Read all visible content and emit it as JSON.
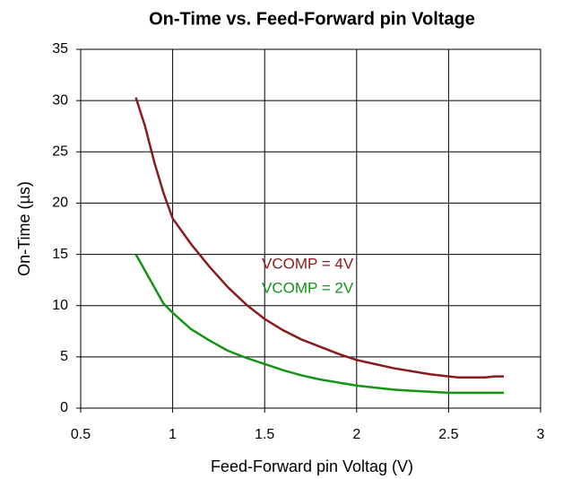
{
  "chart_data": {
    "type": "line",
    "title": "On-Time vs. Feed-Forward pin Voltage",
    "x_label": "Feed-Forward pin Voltag (V)",
    "y_label": "On-Time (µs)",
    "x": [
      0.8,
      0.85,
      0.9,
      0.95,
      1.0,
      1.1,
      1.2,
      1.3,
      1.4,
      1.5,
      1.6,
      1.7,
      1.8,
      1.9,
      2.0,
      2.1,
      2.2,
      2.3,
      2.4,
      2.5,
      2.55,
      2.6,
      2.7,
      2.75,
      2.8
    ],
    "series": [
      {
        "name": "VCOMP = 4V",
        "color": "#8b1a1a",
        "values": [
          30.3,
          27.5,
          24.0,
          21.0,
          18.5,
          16.0,
          13.8,
          11.8,
          10.1,
          8.7,
          7.6,
          6.7,
          6.0,
          5.3,
          4.7,
          4.3,
          3.9,
          3.6,
          3.3,
          3.1,
          3.0,
          3.0,
          3.0,
          3.1,
          3.1
        ]
      },
      {
        "name": "VCOMP = 2V",
        "color": "#149414",
        "values": [
          15.0,
          13.4,
          11.8,
          10.2,
          9.3,
          7.7,
          6.6,
          5.6,
          4.9,
          4.3,
          3.7,
          3.2,
          2.8,
          2.5,
          2.2,
          2.0,
          1.8,
          1.7,
          1.6,
          1.5,
          1.5,
          1.5,
          1.5,
          1.5,
          1.5
        ]
      }
    ],
    "xlim": [
      0.5,
      3
    ],
    "ylim": [
      0,
      35
    ],
    "xticks": [
      0.5,
      1,
      1.5,
      2,
      2.5,
      3
    ],
    "yticks": [
      0,
      5,
      10,
      15,
      20,
      25,
      30,
      35
    ],
    "grid": true
  }
}
